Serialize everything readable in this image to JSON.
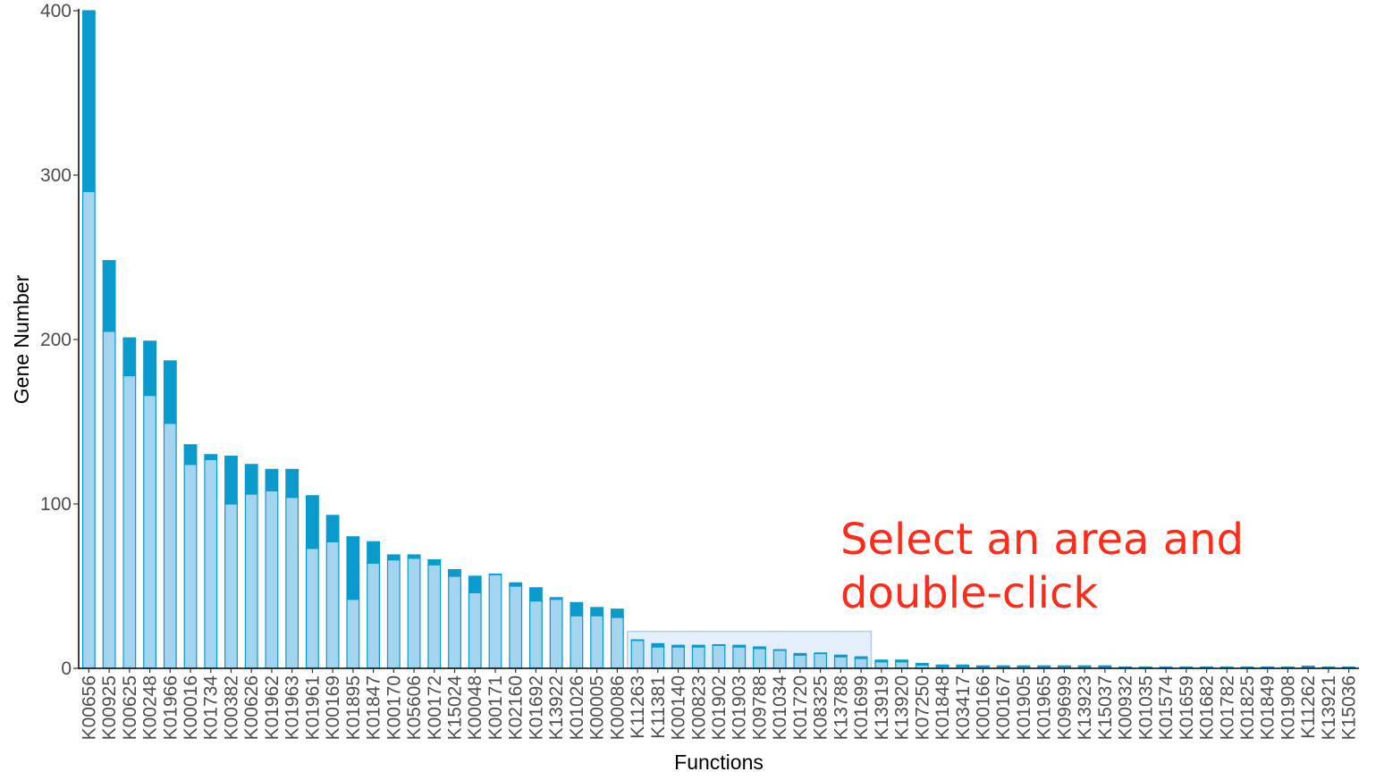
{
  "chart_data": {
    "type": "bar",
    "stacked": true,
    "xlabel": "Functions",
    "ylabel": "Gene Number",
    "ylim": [
      0,
      400
    ],
    "yticks": [
      0,
      100,
      200,
      300,
      400
    ],
    "categories": [
      "K00656",
      "K00925",
      "K00625",
      "K00248",
      "K01966",
      "K00016",
      "K01734",
      "K00382",
      "K00626",
      "K01962",
      "K01963",
      "K01961",
      "K00169",
      "K01895",
      "K01847",
      "K00170",
      "K05606",
      "K00172",
      "K15024",
      "K00048",
      "K00171",
      "K02160",
      "K01692",
      "K13922",
      "K01026",
      "K00005",
      "K00086",
      "K11263",
      "K11381",
      "K00140",
      "K00823",
      "K01902",
      "K01903",
      "K09788",
      "K01034",
      "K01720",
      "K08325",
      "K13788",
      "K01699",
      "K13919",
      "K13920",
      "K07250",
      "K01848",
      "K03417",
      "K00166",
      "K00167",
      "K01905",
      "K01965",
      "K09699",
      "K13923",
      "K15037",
      "K00932",
      "K01035",
      "K01574",
      "K01659",
      "K01682",
      "K01782",
      "K01825",
      "K01849",
      "K01908",
      "K11262",
      "K13921",
      "K15036"
    ],
    "series": [
      {
        "color": "#a3d4f0",
        "values": [
          290,
          205,
          178,
          166,
          149,
          124,
          127,
          100,
          106,
          108,
          104,
          73,
          77,
          42,
          64,
          66,
          67,
          63,
          56,
          46,
          57,
          50,
          41,
          42,
          32,
          32,
          31,
          17,
          13,
          13,
          13,
          14,
          13,
          12,
          11,
          8,
          9,
          7,
          6,
          4,
          4,
          2,
          1,
          1,
          0.5,
          0.5,
          0.5,
          0.5,
          0.5,
          0.5,
          0.5,
          0.3,
          0.3,
          0.3,
          0.3,
          0.3,
          0.3,
          0.3,
          0.3,
          0.3,
          0.3,
          0.3,
          0.3
        ]
      },
      {
        "color": "#0a9acb",
        "values": [
          110,
          43,
          23,
          33,
          38,
          12,
          3,
          29,
          18,
          13,
          17,
          32,
          16,
          38,
          13,
          3,
          2,
          3,
          4,
          10,
          0,
          2,
          8,
          1,
          8,
          5,
          5,
          0,
          2,
          1,
          1,
          0,
          1,
          1,
          0,
          1,
          0,
          1,
          1,
          1,
          1,
          1,
          1,
          1,
          1,
          1,
          1,
          1,
          1,
          1,
          1,
          0.5,
          0.5,
          0.5,
          0.5,
          0.5,
          0.5,
          0.5,
          0.5,
          0.5,
          1,
          0.5,
          0.5
        ]
      }
    ],
    "selection": {
      "from": "K11263",
      "to": "K01699"
    },
    "annotation": {
      "line1": "Select an area and",
      "line2": "double-click"
    },
    "colors": {
      "annotation": "#ff2a1a",
      "selection_fill": "#e3f0fb",
      "selection_stroke": "#b9cde6"
    }
  }
}
